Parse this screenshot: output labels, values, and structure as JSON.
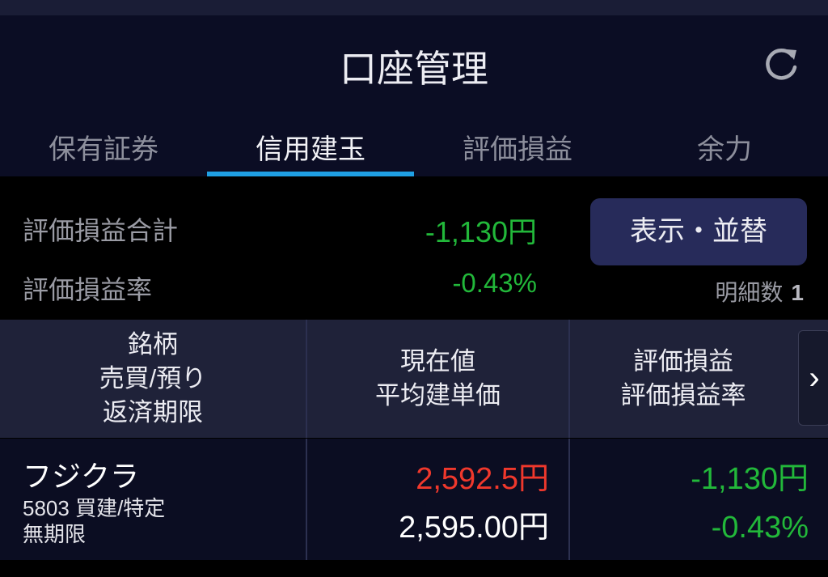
{
  "header": {
    "title": "口座管理",
    "refresh_icon": "refresh-icon"
  },
  "tabs": [
    {
      "label": "保有証券"
    },
    {
      "label": "信用建玉",
      "active": true
    },
    {
      "label": "評価損益"
    },
    {
      "label": "余力"
    }
  ],
  "summary": {
    "total_label": "評価損益合計",
    "total_value": "-1,130円",
    "rate_label": "評価損益率",
    "rate_value": "-0.43%",
    "button_label": "表示・並替",
    "count_label": "明細数",
    "count_value": "1"
  },
  "table": {
    "headers": {
      "col1": [
        "銘柄",
        "売買/預り",
        "返済期限"
      ],
      "col2": [
        "現在値",
        "平均建単価"
      ],
      "col3": [
        "評価損益",
        "評価損益率"
      ],
      "next": "›"
    },
    "rows": [
      {
        "name": "フジクラ",
        "code_type": "5803 買建/特定",
        "deadline": "無期限",
        "current_price": "2,592.5円",
        "avg_price": "2,595.00円",
        "pl": "-1,130円",
        "pl_rate": "-0.43%"
      }
    ]
  },
  "colors": {
    "accent": "#1fa0e4",
    "positive_green": "#22b83a",
    "price_red": "#f0382c",
    "button_bg": "#272b5a"
  }
}
